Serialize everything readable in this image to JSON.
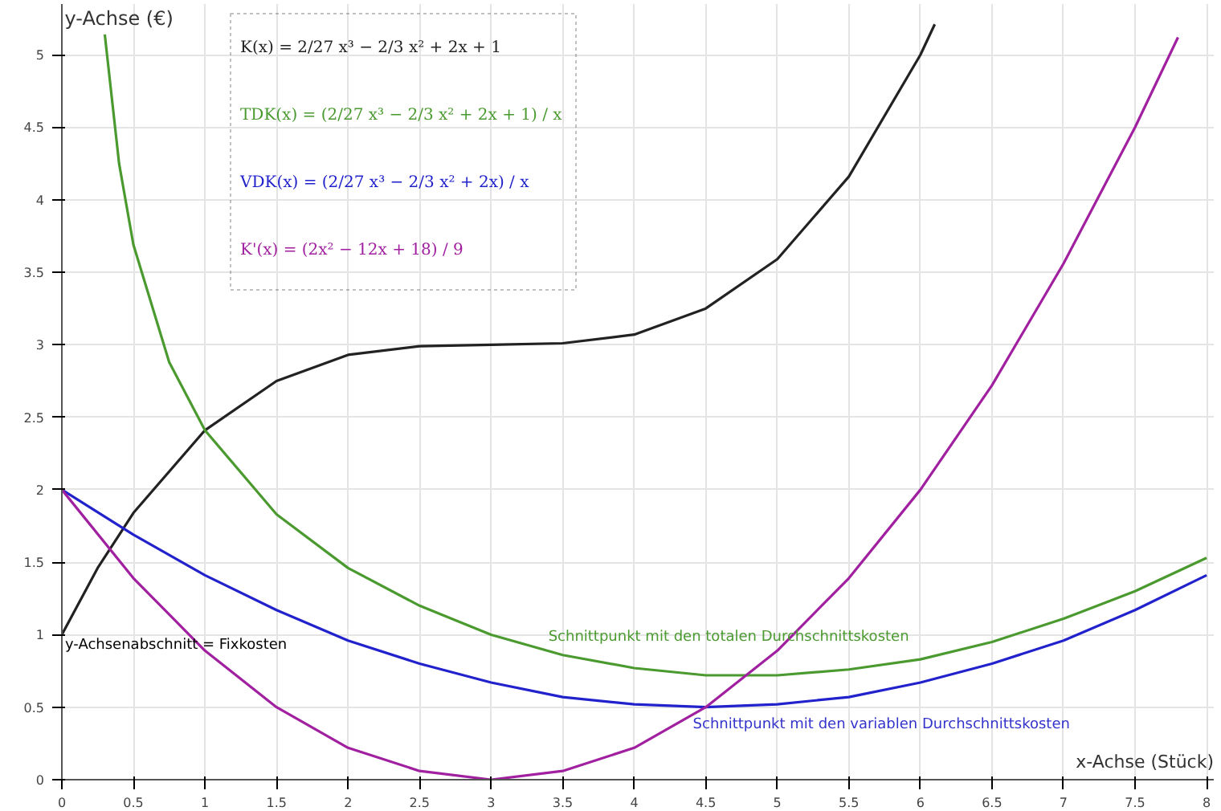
{
  "chart_data": {
    "type": "line",
    "xlabel": "x-Achse (Stück)",
    "ylabel": "y-Achse (€)",
    "xlim": [
      0,
      8.05
    ],
    "ylim": [
      0,
      5.35
    ],
    "xticks": [
      0,
      0.5,
      1,
      1.5,
      2,
      2.5,
      3,
      3.5,
      4,
      4.5,
      5,
      5.5,
      6,
      6.5,
      7,
      7.5,
      8
    ],
    "yticks": [
      0,
      0.5,
      1,
      1.5,
      2,
      2.5,
      3,
      3.5,
      4,
      4.5,
      5
    ],
    "grid": true,
    "legend": "top left",
    "series": [
      {
        "name": "K(x) = 2/27 x³ − 2/3 x² + 2x + 1",
        "color": "#222222",
        "x": [
          0,
          0.25,
          0.5,
          1,
          1.5,
          2,
          2.5,
          3,
          3.5,
          4,
          4.5,
          5,
          5.5,
          6,
          6.1
        ],
        "values": [
          1,
          1.46,
          1.84,
          2.41,
          2.75,
          2.93,
          2.99,
          3,
          3.01,
          3.07,
          3.25,
          3.59,
          4.16,
          5,
          5.21
        ]
      },
      {
        "name": "TDK(x) = (2/27 x³ − 2/3 x² + 2x + 1) / x",
        "color": "#4a9a30",
        "x": [
          0.3,
          0.4,
          0.5,
          0.75,
          1,
          1.5,
          2,
          2.5,
          3,
          3.5,
          4,
          4.5,
          5,
          5.5,
          6,
          6.5,
          7,
          7.5,
          8
        ],
        "values": [
          5.14,
          4.25,
          3.69,
          2.88,
          2.41,
          1.83,
          1.46,
          1.2,
          1,
          0.86,
          0.77,
          0.72,
          0.72,
          0.76,
          0.83,
          0.95,
          1.11,
          1.3,
          1.53
        ]
      },
      {
        "name": "VDK(x) = (2/27 x³ − 2/3 x² + 2x) / x",
        "color": "#2222cc",
        "x": [
          0,
          0.5,
          1,
          1.5,
          2,
          2.5,
          3,
          3.5,
          4,
          4.5,
          5,
          5.5,
          6,
          6.5,
          7,
          7.5,
          8
        ],
        "values": [
          2,
          1.69,
          1.41,
          1.17,
          0.96,
          0.8,
          0.67,
          0.57,
          0.52,
          0.5,
          0.52,
          0.57,
          0.67,
          0.8,
          0.96,
          1.17,
          1.41
        ]
      },
      {
        "name": "K'(x) = (2x² − 12x + 18) / 9",
        "color": "#a020a0",
        "x": [
          0,
          0.5,
          1,
          1.5,
          2,
          2.5,
          3,
          3.5,
          4,
          4.5,
          5,
          5.5,
          6,
          6.5,
          7,
          7.5,
          7.8
        ],
        "values": [
          2,
          1.39,
          0.89,
          0.5,
          0.22,
          0.06,
          0,
          0.06,
          0.22,
          0.5,
          0.89,
          1.39,
          2,
          2.72,
          3.56,
          4.5,
          5.12
        ]
      }
    ],
    "annotations": [
      {
        "text": "Schnittpunkt mit den totalen Durchschnittskosten",
        "x": 3.4,
        "y": 0.88
      },
      {
        "text": "Schnittpunkt mit den variablen Durchschnittskosten",
        "x": 4.5,
        "y": 0.5
      },
      {
        "text": "y-Achsenabschnitt = Fixkosten",
        "x": 0,
        "y": 1
      }
    ]
  }
}
